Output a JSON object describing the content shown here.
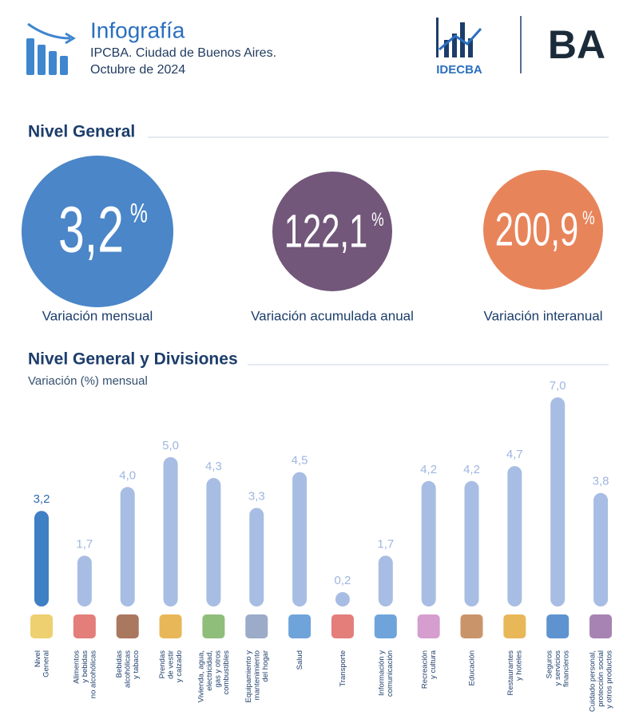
{
  "header": {
    "title": "Infografía",
    "subtitle_lines": [
      "IPCBA. Ciudad de Buenos Aires.",
      "Octubre de 2024"
    ],
    "logo_text": "IDECBA",
    "brand": "BA"
  },
  "summary": {
    "title": "Nivel General",
    "items": [
      {
        "value": 3.2,
        "value_label": "3,2",
        "unit": "%",
        "caption": "Variación mensual",
        "color": "#4a86c8"
      },
      {
        "value": 122.1,
        "value_label": "122,1",
        "unit": "%",
        "caption": "Variación acumulada anual",
        "color": "#72577a"
      },
      {
        "value": 200.9,
        "value_label": "200,9",
        "unit": "%",
        "caption": "Variación interanual",
        "color": "#e8845a"
      }
    ]
  },
  "chart_data": {
    "type": "bar",
    "title": "Nivel General y Divisiones",
    "subtitle": "Variación (%) mensual",
    "categories": [
      "Nivel\nGeneral",
      "Alimentos\ny bebidas\nno alcohólicas",
      "Bebidas\nalcohólicas\ny tabaco",
      "Prendas\nde vestir\ny calzado",
      "Vivienda, agua,\nelectricidad,\ngas y otros\ncombustibles",
      "Equipamiento y\nmantenimiento\ndel hogar",
      "Salud",
      "Transporte",
      "Información y\ncomunicación",
      "Recreación\ny cultura",
      "Educación",
      "Restaurantes\ny hoteles",
      "Seguros\ny servicios\nfinancieros",
      "Cuidado personal,\nprotección social\ny otros productos"
    ],
    "values": [
      3.2,
      1.7,
      4.0,
      5.0,
      4.3,
      3.3,
      4.5,
      0.2,
      1.7,
      4.2,
      4.2,
      4.7,
      7.0,
      3.8
    ],
    "value_labels": [
      "3,2",
      "1,7",
      "4,0",
      "5,0",
      "4,3",
      "3,3",
      "4,5",
      "0,2",
      "1,7",
      "4,2",
      "4,2",
      "4,7",
      "7,0",
      "3,8"
    ],
    "colors": [
      "#3f7fc4",
      "#a8bde3",
      "#a8bde3",
      "#a8bde3",
      "#a8bde3",
      "#a8bde3",
      "#a8bde3",
      "#a8bde3",
      "#a8bde3",
      "#a8bde3",
      "#a8bde3",
      "#a8bde3",
      "#a8bde3",
      "#a8bde3"
    ]
  }
}
